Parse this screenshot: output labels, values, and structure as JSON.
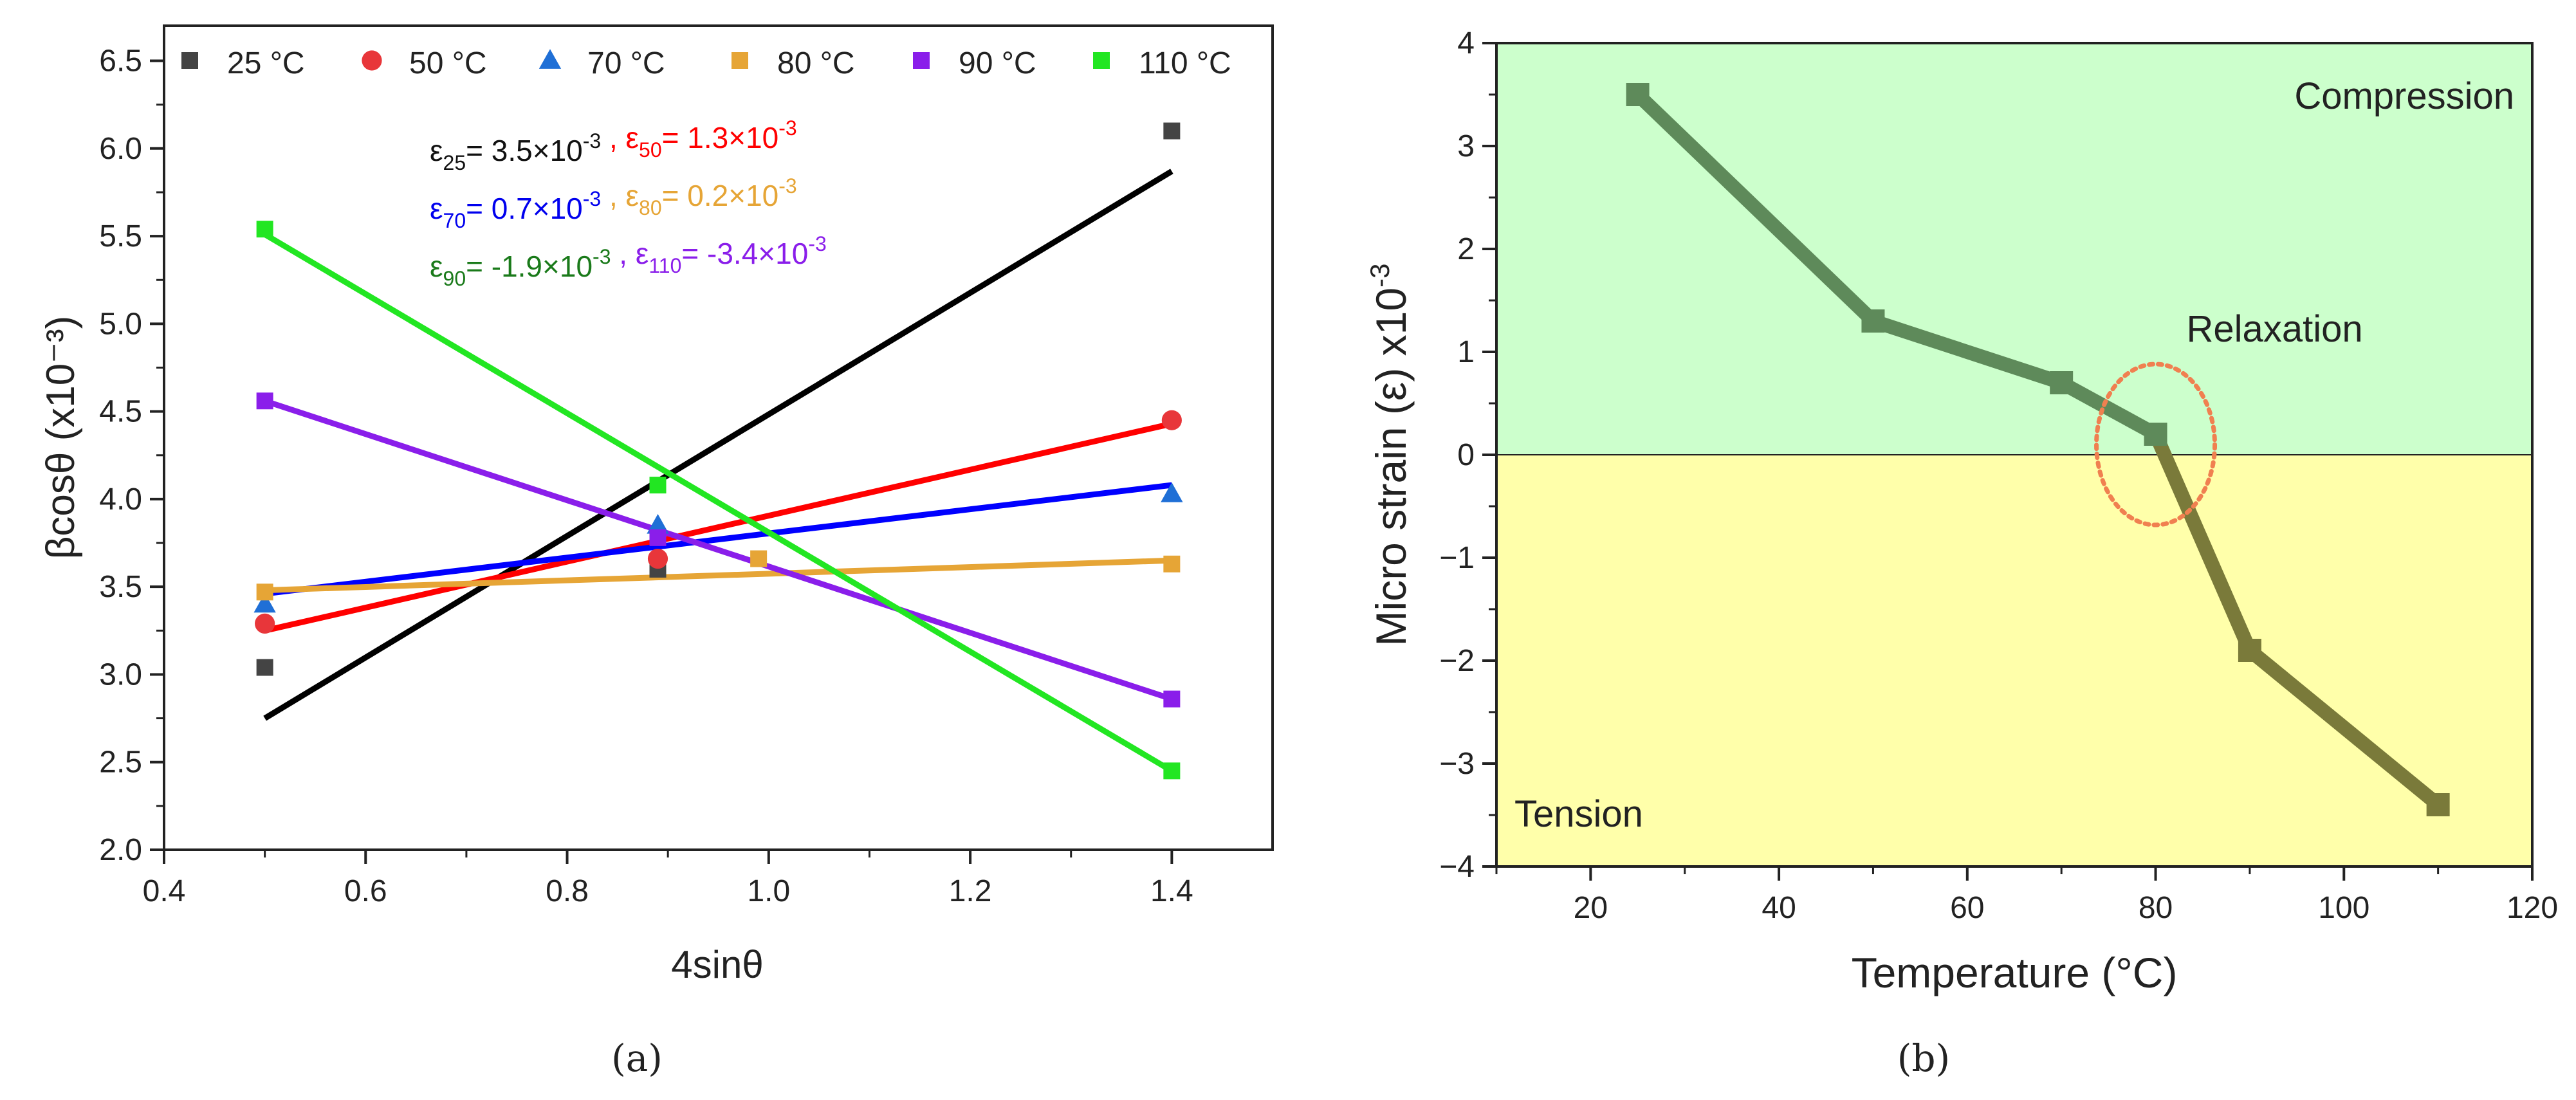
{
  "chart_data": [
    {
      "type": "scatter",
      "panel": "(a)",
      "xlabel": "4sinθ",
      "ylabel": "βcosθ (x10⁻³)",
      "xlim": [
        0.4,
        1.5
      ],
      "ylim": [
        2.0,
        6.7
      ],
      "xticks": [
        0.4,
        0.6,
        0.8,
        1.0,
        1.2,
        1.4
      ],
      "yticks": [
        2.0,
        2.5,
        3.0,
        3.5,
        4.0,
        4.5,
        5.0,
        5.5,
        6.0,
        6.5
      ],
      "series": [
        {
          "name": "25 °C",
          "color": "#444444",
          "marker": "square",
          "line_color": "#000000",
          "points": [
            [
              0.5,
              3.04
            ],
            [
              0.89,
              3.6
            ],
            [
              1.4,
              6.1
            ]
          ],
          "fit": [
            [
              0.5,
              2.75
            ],
            [
              1.4,
              5.87
            ]
          ]
        },
        {
          "name": "50 °C",
          "color": "#e8363a",
          "marker": "circle",
          "line_color": "#ff0000",
          "points": [
            [
              0.5,
              3.29
            ],
            [
              0.89,
              3.66
            ],
            [
              1.4,
              4.45
            ]
          ],
          "fit": [
            [
              0.5,
              3.25
            ],
            [
              1.4,
              4.43
            ]
          ]
        },
        {
          "name": "70 °C",
          "color": "#1f6fd6",
          "marker": "triangle",
          "line_color": "#0000ff",
          "points": [
            [
              0.5,
              3.4
            ],
            [
              0.89,
              3.85
            ],
            [
              1.4,
              4.03
            ]
          ],
          "fit": [
            [
              0.5,
              3.46
            ],
            [
              1.4,
              4.08
            ]
          ]
        },
        {
          "name": "80 °C",
          "color": "#e6a536",
          "marker": "square",
          "line_color": "#e6a536",
          "points": [
            [
              0.5,
              3.47
            ],
            [
              0.99,
              3.66
            ],
            [
              1.4,
              3.63
            ]
          ],
          "fit": [
            [
              0.5,
              3.48
            ],
            [
              1.4,
              3.65
            ]
          ]
        },
        {
          "name": "90 °C",
          "color": "#8a1eea",
          "marker": "square",
          "line_color": "#8a1eea",
          "points": [
            [
              0.5,
              4.56
            ],
            [
              0.89,
              3.78
            ],
            [
              1.4,
              2.86
            ]
          ],
          "fit": [
            [
              0.5,
              4.56
            ],
            [
              1.4,
              2.86
            ]
          ]
        },
        {
          "name": "110 °C",
          "color": "#22e622",
          "marker": "square",
          "line_color": "#22e622",
          "points": [
            [
              0.5,
              5.54
            ],
            [
              0.89,
              4.08
            ],
            [
              1.4,
              2.45
            ]
          ],
          "fit": [
            [
              0.5,
              5.51
            ],
            [
              1.4,
              2.45
            ]
          ]
        }
      ],
      "annotations": [
        {
          "sym": "ε",
          "sub": "25",
          "text": "= 3.5×10",
          "sup": "-3",
          "sep": "",
          "color": "#111111"
        },
        {
          "sym": "ε",
          "sub": "50",
          "text": "= 1.3×10",
          "sup": "-3",
          "sep": " , ",
          "color": "#ff0000"
        },
        {
          "sym": "ε",
          "sub": "70",
          "text": "= 0.7×10",
          "sup": "-3",
          "sep": "",
          "color": "#0000ee"
        },
        {
          "sym": "ε",
          "sub": "80",
          "text": "= 0.2×10",
          "sup": "-3",
          "sep": " , ",
          "color": "#e6a536"
        },
        {
          "sym": "ε",
          "sub": "90",
          "text": "= -1.9×10",
          "sup": "-3",
          "sep": "",
          "color": "#1a7a1a"
        },
        {
          "sym": "ε",
          "sub": "110",
          "text": "= -3.4×10",
          "sup": "-3",
          "sep": " , ",
          "color": "#8a1eea"
        }
      ],
      "caption": "(a)"
    },
    {
      "type": "line",
      "panel": "(b)",
      "xlabel": "Temperature (°C)",
      "ylabel": "Micro strain (ε) x10",
      "ylabel_sup": "-3",
      "xlim": [
        10,
        120
      ],
      "ylim": [
        -4,
        4
      ],
      "xticks": [
        20,
        40,
        60,
        80,
        100,
        120
      ],
      "yticks": [
        -4,
        -3,
        -2,
        -1,
        0,
        1,
        2,
        3,
        4
      ],
      "x": [
        25,
        50,
        70,
        80,
        90,
        110
      ],
      "values": [
        3.5,
        1.3,
        0.7,
        0.2,
        -1.9,
        -3.4
      ],
      "regions": [
        {
          "label": "Compression",
          "from": 0,
          "to": 4,
          "color": "#ccffcc"
        },
        {
          "label": "Tension",
          "from": -4,
          "to": 0,
          "color": "#ffffaa"
        }
      ],
      "annotation": {
        "label": "Relaxation",
        "x": 80,
        "y": 0.1,
        "color": "#ff2020",
        "ring_color": "#f08050"
      },
      "line_color_top": "#5e8a5a",
      "line_color_bottom": "#7a7a3a",
      "caption": "(b)"
    }
  ]
}
